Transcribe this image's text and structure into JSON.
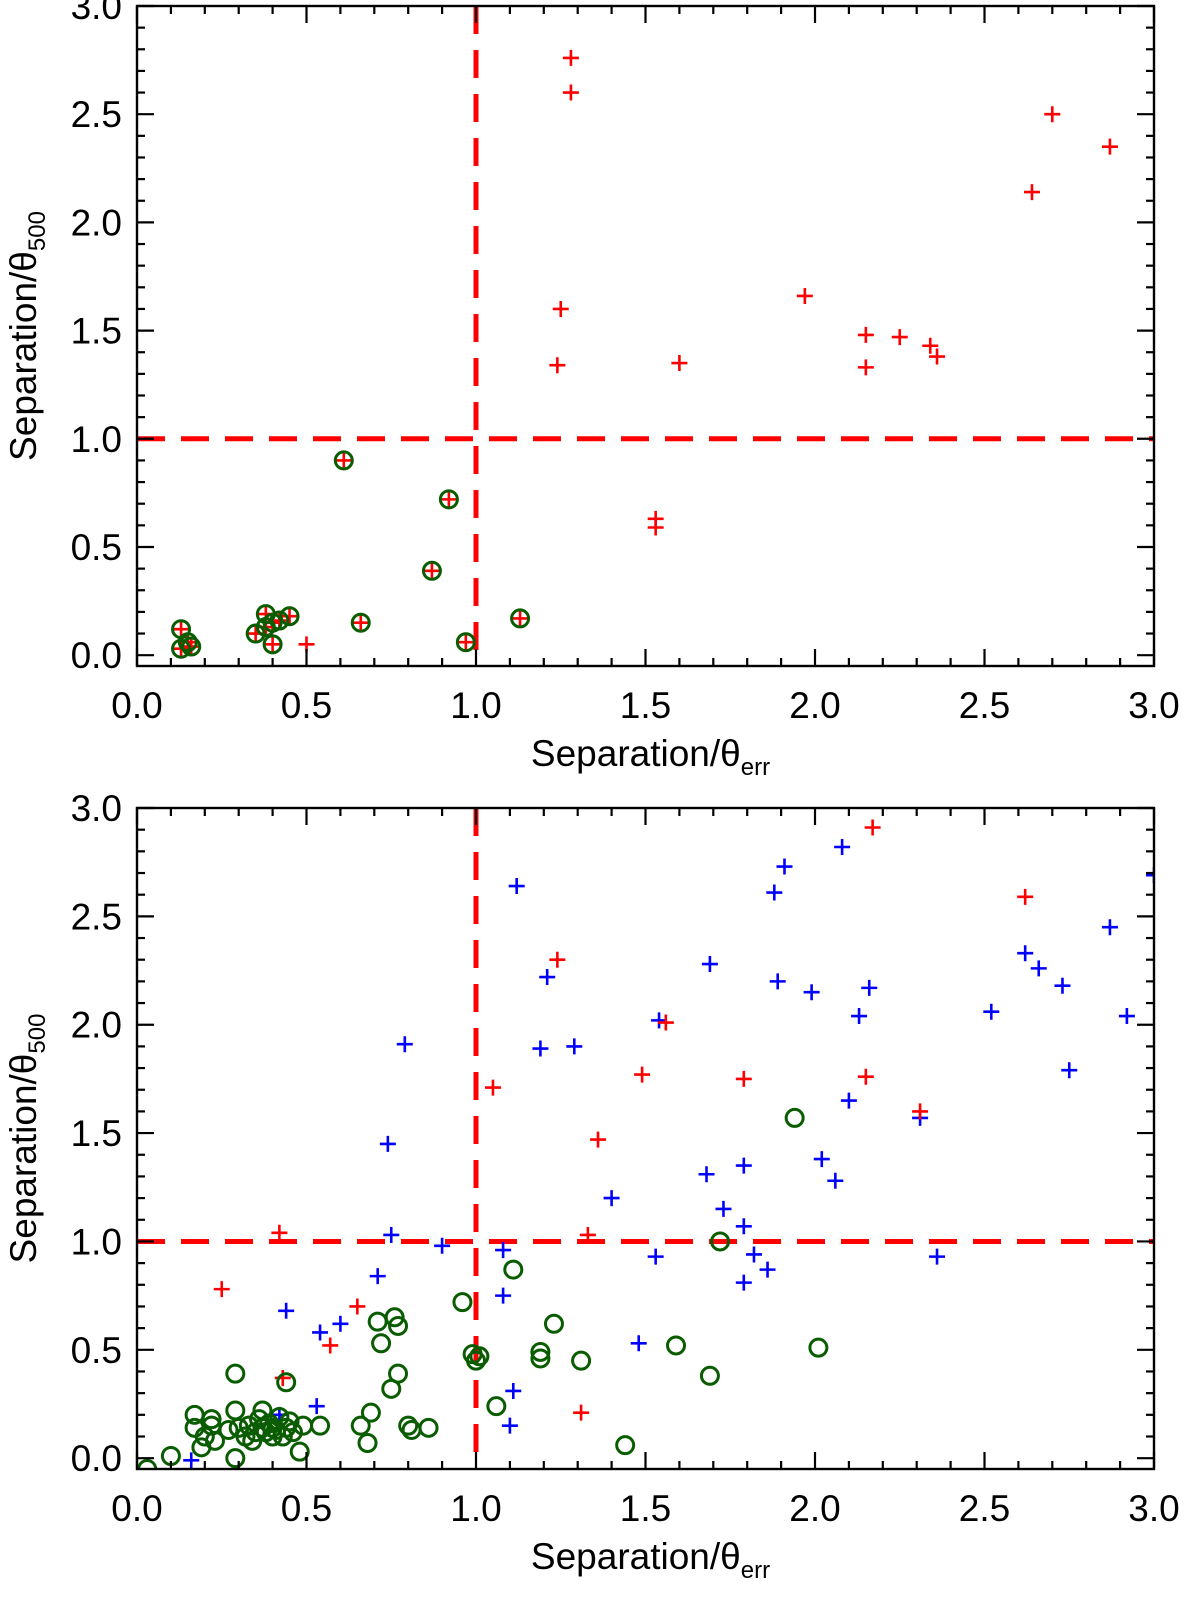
{
  "colors": {
    "red": "#ff0000",
    "blue": "#0000ff",
    "green": "#0a5c00",
    "frame": "#000000"
  },
  "chart_data": [
    {
      "type": "scatter",
      "panel": "top",
      "xlabel": "Separation/θ",
      "xlabel_sub": "err",
      "ylabel": "Separation/θ",
      "ylabel_sub": "500",
      "xlim": [
        0,
        3
      ],
      "ylim": [
        -0.05,
        3
      ],
      "xticks": [
        "0.0",
        "0.5",
        "1.0",
        "1.5",
        "2.0",
        "2.5",
        "3.0"
      ],
      "yticks": [
        "0.0",
        "0.5",
        "1.0",
        "1.5",
        "2.0",
        "2.5",
        "3.0"
      ],
      "reference_lines": {
        "x": 1.0,
        "y": 1.0,
        "style": "dashed",
        "color": "red"
      },
      "series": [
        {
          "name": "red crosses",
          "marker": "plus",
          "color": "red",
          "points": [
            [
              0.13,
              0.03
            ],
            [
              0.15,
              0.06
            ],
            [
              0.16,
              0.04
            ],
            [
              0.13,
              0.12
            ],
            [
              0.35,
              0.1
            ],
            [
              0.38,
              0.19
            ],
            [
              0.38,
              0.13
            ],
            [
              0.4,
              0.15
            ],
            [
              0.4,
              0.05
            ],
            [
              0.42,
              0.16
            ],
            [
              0.45,
              0.18
            ],
            [
              0.5,
              0.05
            ],
            [
              0.61,
              0.9
            ],
            [
              0.66,
              0.15
            ],
            [
              0.87,
              0.39
            ],
            [
              0.92,
              0.72
            ],
            [
              0.97,
              0.06
            ],
            [
              1.13,
              0.17
            ],
            [
              1.24,
              1.34
            ],
            [
              1.25,
              1.6
            ],
            [
              1.28,
              2.76
            ],
            [
              1.28,
              2.6
            ],
            [
              1.53,
              0.63
            ],
            [
              1.53,
              0.59
            ],
            [
              1.6,
              1.35
            ],
            [
              1.97,
              1.66
            ],
            [
              2.15,
              1.48
            ],
            [
              2.15,
              1.33
            ],
            [
              2.25,
              1.47
            ],
            [
              2.34,
              1.43
            ],
            [
              2.36,
              1.38
            ],
            [
              2.64,
              2.14
            ],
            [
              2.7,
              2.5
            ],
            [
              2.87,
              2.35
            ]
          ]
        },
        {
          "name": "green circles",
          "marker": "circle",
          "color": "green",
          "points": [
            [
              0.13,
              0.03
            ],
            [
              0.15,
              0.06
            ],
            [
              0.16,
              0.04
            ],
            [
              0.13,
              0.12
            ],
            [
              0.35,
              0.1
            ],
            [
              0.38,
              0.19
            ],
            [
              0.38,
              0.13
            ],
            [
              0.4,
              0.15
            ],
            [
              0.4,
              0.05
            ],
            [
              0.42,
              0.16
            ],
            [
              0.45,
              0.18
            ],
            [
              0.61,
              0.9
            ],
            [
              0.66,
              0.15
            ],
            [
              0.87,
              0.39
            ],
            [
              0.92,
              0.72
            ],
            [
              0.97,
              0.06
            ],
            [
              1.13,
              0.17
            ]
          ]
        }
      ]
    },
    {
      "type": "scatter",
      "panel": "bottom",
      "xlabel": "Separation/θ",
      "xlabel_sub": "err",
      "ylabel": "Separation/θ",
      "ylabel_sub": "500",
      "xlim": [
        0,
        3
      ],
      "ylim": [
        -0.05,
        3
      ],
      "xticks": [
        "0.0",
        "0.5",
        "1.0",
        "1.5",
        "2.0",
        "2.5",
        "3.0"
      ],
      "yticks": [
        "0.0",
        "0.5",
        "1.0",
        "1.5",
        "2.0",
        "2.5",
        "3.0"
      ],
      "reference_lines": {
        "x": 1.0,
        "y": 1.0,
        "style": "dashed",
        "color": "red"
      },
      "series": [
        {
          "name": "blue crosses",
          "marker": "plus",
          "color": "blue",
          "points": [
            [
              0.16,
              -0.01
            ],
            [
              0.42,
              0.2
            ],
            [
              0.44,
              0.68
            ],
            [
              0.53,
              0.24
            ],
            [
              0.54,
              0.58
            ],
            [
              0.6,
              0.62
            ],
            [
              0.71,
              0.84
            ],
            [
              0.74,
              1.45
            ],
            [
              0.75,
              1.03
            ],
            [
              0.79,
              1.91
            ],
            [
              0.9,
              0.98
            ],
            [
              1.08,
              0.96
            ],
            [
              1.08,
              0.75
            ],
            [
              1.1,
              0.15
            ],
            [
              1.11,
              0.31
            ],
            [
              1.12,
              2.64
            ],
            [
              1.19,
              1.89
            ],
            [
              1.21,
              2.22
            ],
            [
              1.29,
              1.9
            ],
            [
              1.4,
              1.2
            ],
            [
              1.48,
              0.53
            ],
            [
              1.53,
              0.93
            ],
            [
              1.54,
              2.02
            ],
            [
              1.68,
              1.31
            ],
            [
              1.69,
              2.28
            ],
            [
              1.73,
              1.15
            ],
            [
              1.79,
              1.35
            ],
            [
              1.79,
              1.07
            ],
            [
              1.79,
              0.81
            ],
            [
              1.82,
              0.94
            ],
            [
              1.86,
              0.87
            ],
            [
              1.88,
              2.61
            ],
            [
              1.89,
              2.2
            ],
            [
              1.91,
              2.73
            ],
            [
              1.99,
              2.15
            ],
            [
              2.02,
              1.38
            ],
            [
              2.06,
              1.28
            ],
            [
              2.08,
              2.82
            ],
            [
              2.1,
              1.65
            ],
            [
              2.13,
              2.04
            ],
            [
              2.16,
              2.17
            ],
            [
              2.31,
              1.57
            ],
            [
              2.36,
              0.93
            ],
            [
              2.52,
              2.06
            ],
            [
              2.62,
              2.33
            ],
            [
              2.66,
              2.26
            ],
            [
              2.73,
              2.18
            ],
            [
              2.75,
              1.79
            ],
            [
              2.87,
              2.45
            ],
            [
              2.92,
              2.04
            ],
            [
              3.0,
              2.69
            ]
          ]
        },
        {
          "name": "red crosses",
          "marker": "plus",
          "color": "red",
          "points": [
            [
              0.25,
              0.78
            ],
            [
              0.42,
              1.04
            ],
            [
              0.43,
              0.37
            ],
            [
              0.57,
              0.52
            ],
            [
              0.65,
              0.7
            ],
            [
              1.05,
              1.71
            ],
            [
              1.24,
              2.3
            ],
            [
              1.31,
              0.21
            ],
            [
              1.33,
              1.03
            ],
            [
              1.36,
              1.47
            ],
            [
              1.49,
              1.77
            ],
            [
              1.56,
              2.01
            ],
            [
              1.79,
              1.75
            ],
            [
              2.15,
              1.76
            ],
            [
              2.17,
              2.91
            ],
            [
              2.31,
              1.6
            ],
            [
              2.62,
              2.59
            ]
          ]
        },
        {
          "name": "green circles",
          "marker": "circle",
          "color": "green",
          "points": [
            [
              0.03,
              -0.05
            ],
            [
              0.1,
              0.01
            ],
            [
              0.17,
              0.14
            ],
            [
              0.17,
              0.2
            ],
            [
              0.19,
              0.05
            ],
            [
              0.2,
              0.1
            ],
            [
              0.22,
              0.15
            ],
            [
              0.22,
              0.18
            ],
            [
              0.23,
              0.08
            ],
            [
              0.27,
              0.13
            ],
            [
              0.29,
              0.0
            ],
            [
              0.29,
              0.22
            ],
            [
              0.3,
              0.14
            ],
            [
              0.29,
              0.39
            ],
            [
              0.32,
              0.1
            ],
            [
              0.33,
              0.15
            ],
            [
              0.34,
              0.08
            ],
            [
              0.35,
              0.12
            ],
            [
              0.36,
              0.18
            ],
            [
              0.37,
              0.22
            ],
            [
              0.37,
              0.14
            ],
            [
              0.38,
              0.12
            ],
            [
              0.39,
              0.16
            ],
            [
              0.4,
              0.1
            ],
            [
              0.4,
              0.14
            ],
            [
              0.41,
              0.13
            ],
            [
              0.42,
              0.19
            ],
            [
              0.43,
              0.1
            ],
            [
              0.44,
              0.14
            ],
            [
              0.44,
              0.35
            ],
            [
              0.45,
              0.17
            ],
            [
              0.46,
              0.12
            ],
            [
              0.48,
              0.03
            ],
            [
              0.49,
              0.15
            ],
            [
              0.54,
              0.15
            ],
            [
              0.66,
              0.15
            ],
            [
              0.68,
              0.07
            ],
            [
              0.69,
              0.21
            ],
            [
              0.71,
              0.63
            ],
            [
              0.72,
              0.53
            ],
            [
              0.75,
              0.32
            ],
            [
              0.76,
              0.65
            ],
            [
              0.77,
              0.61
            ],
            [
              0.77,
              0.39
            ],
            [
              0.8,
              0.15
            ],
            [
              0.81,
              0.13
            ],
            [
              0.86,
              0.14
            ],
            [
              0.96,
              0.72
            ],
            [
              0.99,
              0.48
            ],
            [
              1.0,
              0.45
            ],
            [
              1.01,
              0.47
            ],
            [
              1.06,
              0.24
            ],
            [
              1.11,
              0.87
            ],
            [
              1.19,
              0.49
            ],
            [
              1.19,
              0.46
            ],
            [
              1.23,
              0.62
            ],
            [
              1.31,
              0.45
            ],
            [
              1.44,
              0.06
            ],
            [
              1.59,
              0.52
            ],
            [
              1.69,
              0.38
            ],
            [
              1.72,
              1.0
            ],
            [
              1.94,
              1.57
            ],
            [
              2.01,
              0.51
            ]
          ]
        }
      ]
    }
  ]
}
